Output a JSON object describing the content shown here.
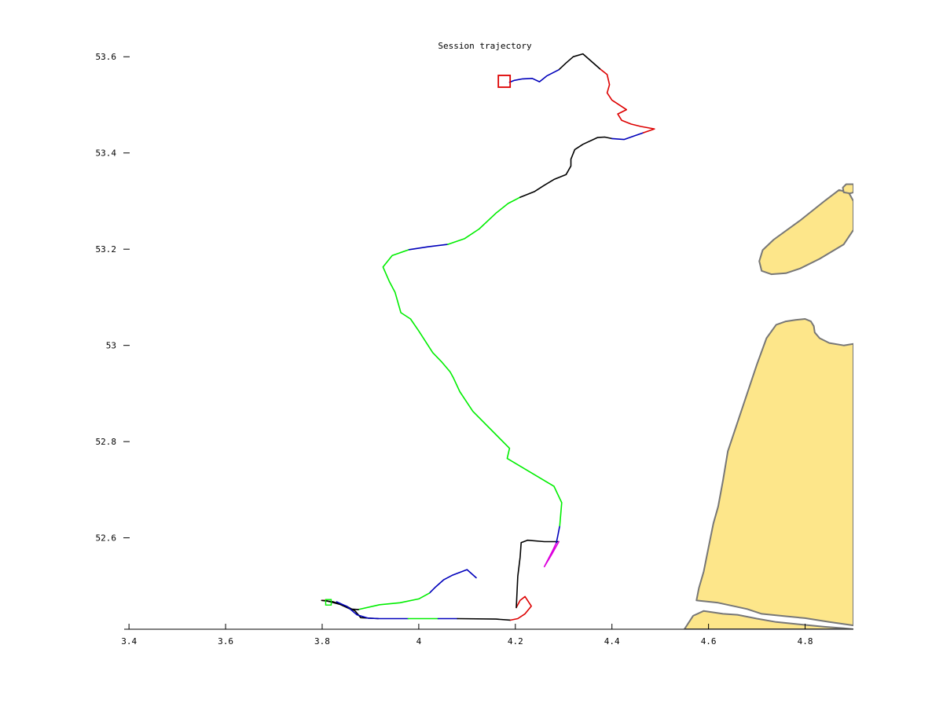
{
  "chart_data": {
    "type": "line",
    "title": "Session trajectory",
    "xlabel": "",
    "ylabel": "",
    "xlim": [
      3.39,
      4.9
    ],
    "ylim": [
      52.41,
      53.62
    ],
    "xticks": [
      3.4,
      3.6,
      3.8,
      4,
      4.2,
      4.4,
      4.6,
      4.8
    ],
    "xtick_labels": [
      "3.4",
      "3.6",
      "3.8",
      "4",
      "4.2",
      "4.4",
      "4.6",
      "4.8"
    ],
    "yticks": [
      52.6,
      52.8,
      53,
      53.2,
      53.4,
      53.6
    ],
    "ytick_labels": [
      "52.6",
      "52.8",
      "53",
      "53.2",
      "53.4",
      "53.6"
    ],
    "grid": false,
    "colors": {
      "black": "#000000",
      "green": "#00ee00",
      "blue": "#0000bb",
      "red": "#dd0000",
      "magenta": "#dd00dd",
      "land_fill": "#fde68a",
      "land_stroke": "#777777"
    },
    "markers": [
      {
        "shape": "square",
        "color": "red",
        "x": 4.177,
        "y": 53.549
      },
      {
        "shape": "square",
        "color": "green",
        "x": 3.813,
        "y": 52.466
      }
    ],
    "segments": [
      {
        "color": "blue",
        "points": [
          [
            4.119,
            52.517
          ],
          [
            4.1,
            52.534
          ],
          [
            4.069,
            52.522
          ],
          [
            4.052,
            52.513
          ],
          [
            4.035,
            52.498
          ],
          [
            4.022,
            52.485
          ]
        ]
      },
      {
        "color": "green",
        "points": [
          [
            4.022,
            52.485
          ],
          [
            4.0,
            52.473
          ],
          [
            3.961,
            52.465
          ],
          [
            3.919,
            52.461
          ],
          [
            3.875,
            52.451
          ]
        ]
      },
      {
        "color": "black",
        "points": [
          [
            3.875,
            52.451
          ],
          [
            3.858,
            52.452
          ],
          [
            3.836,
            52.462
          ],
          [
            3.806,
            52.47
          ]
        ]
      },
      {
        "color": "red",
        "points": [
          [
            3.806,
            52.47
          ],
          [
            3.799,
            52.47
          ]
        ]
      },
      {
        "color": "black",
        "points": [
          [
            3.799,
            52.47
          ],
          [
            3.823,
            52.467
          ],
          [
            3.85,
            52.458
          ],
          [
            3.868,
            52.448
          ],
          [
            3.88,
            52.434
          ],
          [
            3.916,
            52.432
          ]
        ]
      },
      {
        "color": "blue",
        "points": [
          [
            3.83,
            52.467
          ],
          [
            3.852,
            52.457
          ],
          [
            3.872,
            52.44
          ],
          [
            3.895,
            52.433
          ],
          [
            3.919,
            52.432
          ],
          [
            3.978,
            52.432
          ]
        ]
      },
      {
        "color": "green",
        "points": [
          [
            3.978,
            52.432
          ],
          [
            4.04,
            52.432
          ]
        ]
      },
      {
        "color": "blue",
        "points": [
          [
            4.04,
            52.432
          ],
          [
            4.08,
            52.432
          ]
        ]
      },
      {
        "color": "black",
        "points": [
          [
            4.08,
            52.432
          ],
          [
            4.16,
            52.431
          ],
          [
            4.19,
            52.429
          ]
        ]
      },
      {
        "color": "red",
        "points": [
          [
            4.19,
            52.429
          ],
          [
            4.205,
            52.432
          ],
          [
            4.22,
            52.442
          ],
          [
            4.233,
            52.458
          ],
          [
            4.22,
            52.478
          ],
          [
            4.21,
            52.47
          ],
          [
            4.202,
            52.455
          ]
        ]
      },
      {
        "color": "black",
        "points": [
          [
            4.202,
            52.455
          ],
          [
            4.205,
            52.52
          ],
          [
            4.21,
            52.56
          ],
          [
            4.212,
            52.59
          ],
          [
            4.225,
            52.595
          ],
          [
            4.26,
            52.592
          ],
          [
            4.29,
            52.592
          ]
        ]
      },
      {
        "color": "magenta",
        "points": [
          [
            4.29,
            52.592
          ],
          [
            4.275,
            52.565
          ],
          [
            4.26,
            52.54
          ],
          [
            4.278,
            52.575
          ],
          [
            4.285,
            52.59
          ]
        ]
      },
      {
        "color": "blue",
        "points": [
          [
            4.285,
            52.59
          ],
          [
            4.288,
            52.605
          ],
          [
            4.292,
            52.625
          ]
        ]
      },
      {
        "color": "green",
        "points": [
          [
            4.292,
            52.625
          ],
          [
            4.296,
            52.673
          ],
          [
            4.28,
            52.707
          ],
          [
            4.183,
            52.765
          ],
          [
            4.188,
            52.786
          ],
          [
            4.112,
            52.863
          ],
          [
            4.085,
            52.904
          ],
          [
            4.072,
            52.932
          ],
          [
            4.065,
            52.945
          ],
          [
            4.048,
            52.965
          ],
          [
            4.029,
            52.985
          ],
          [
            4.0,
            53.03
          ],
          [
            3.983,
            53.055
          ],
          [
            3.963,
            53.068
          ],
          [
            3.951,
            53.11
          ],
          [
            3.939,
            53.133
          ],
          [
            3.926,
            53.163
          ],
          [
            3.945,
            53.187
          ],
          [
            3.98,
            53.199
          ]
        ]
      },
      {
        "color": "blue",
        "points": [
          [
            3.98,
            53.199
          ],
          [
            4.02,
            53.205
          ],
          [
            4.06,
            53.21
          ]
        ]
      },
      {
        "color": "green",
        "points": [
          [
            4.06,
            53.21
          ],
          [
            4.095,
            53.222
          ],
          [
            4.125,
            53.242
          ],
          [
            4.16,
            53.275
          ],
          [
            4.185,
            53.295
          ],
          [
            4.21,
            53.308
          ]
        ]
      },
      {
        "color": "black",
        "points": [
          [
            4.21,
            53.308
          ],
          [
            4.24,
            53.32
          ],
          [
            4.26,
            53.333
          ],
          [
            4.28,
            53.345
          ],
          [
            4.305,
            53.355
          ],
          [
            4.315,
            53.373
          ],
          [
            4.315,
            53.387
          ],
          [
            4.323,
            53.407
          ],
          [
            4.34,
            53.418
          ],
          [
            4.37,
            53.432
          ],
          [
            4.385,
            53.433
          ],
          [
            4.4,
            53.43
          ]
        ]
      },
      {
        "color": "blue",
        "points": [
          [
            4.4,
            53.43
          ],
          [
            4.425,
            53.428
          ],
          [
            4.445,
            53.435
          ],
          [
            4.465,
            53.442
          ]
        ]
      },
      {
        "color": "red",
        "points": [
          [
            4.465,
            53.442
          ],
          [
            4.488,
            53.45
          ],
          [
            4.46,
            53.455
          ],
          [
            4.44,
            53.46
          ],
          [
            4.42,
            53.468
          ],
          [
            4.412,
            53.481
          ],
          [
            4.43,
            53.49
          ],
          [
            4.4,
            53.51
          ],
          [
            4.39,
            53.525
          ],
          [
            4.395,
            53.542
          ],
          [
            4.39,
            53.563
          ],
          [
            4.375,
            53.575
          ]
        ]
      },
      {
        "color": "black",
        "points": [
          [
            4.375,
            53.575
          ],
          [
            4.34,
            53.606
          ],
          [
            4.32,
            53.6
          ],
          [
            4.305,
            53.587
          ],
          [
            4.29,
            53.573
          ]
        ]
      },
      {
        "color": "blue",
        "points": [
          [
            4.29,
            53.573
          ],
          [
            4.265,
            53.56
          ],
          [
            4.25,
            53.548
          ],
          [
            4.235,
            53.555
          ],
          [
            4.215,
            53.554
          ],
          [
            4.198,
            53.551
          ],
          [
            4.188,
            53.547
          ]
        ]
      }
    ],
    "land": [
      {
        "points": [
          [
            4.55,
            52.41
          ],
          [
            4.568,
            52.438
          ],
          [
            4.59,
            52.448
          ],
          [
            4.63,
            52.442
          ],
          [
            4.66,
            52.44
          ],
          [
            4.7,
            52.432
          ],
          [
            4.74,
            52.425
          ],
          [
            4.79,
            52.42
          ],
          [
            4.84,
            52.415
          ],
          [
            4.88,
            52.412
          ],
          [
            4.9,
            52.41
          ]
        ]
      },
      {
        "points": [
          [
            4.575,
            52.47
          ],
          [
            4.62,
            52.465
          ],
          [
            4.68,
            52.452
          ],
          [
            4.71,
            52.442
          ],
          [
            4.76,
            52.437
          ],
          [
            4.8,
            52.433
          ],
          [
            4.85,
            52.425
          ],
          [
            4.9,
            52.418
          ],
          [
            4.9,
            53.003
          ],
          [
            4.88,
            53.0
          ],
          [
            4.85,
            53.005
          ],
          [
            4.83,
            53.015
          ],
          [
            4.82,
            53.027
          ],
          [
            4.818,
            53.04
          ],
          [
            4.812,
            53.05
          ],
          [
            4.8,
            53.055
          ],
          [
            4.78,
            53.053
          ],
          [
            4.76,
            53.05
          ],
          [
            4.74,
            53.043
          ],
          [
            4.72,
            53.015
          ],
          [
            4.7,
            52.96
          ],
          [
            4.68,
            52.9
          ],
          [
            4.66,
            52.84
          ],
          [
            4.64,
            52.78
          ],
          [
            4.63,
            52.72
          ],
          [
            4.62,
            52.665
          ],
          [
            4.61,
            52.63
          ],
          [
            4.6,
            52.58
          ],
          [
            4.59,
            52.53
          ],
          [
            4.58,
            52.495
          ]
        ]
      },
      {
        "points": [
          [
            4.9,
            53.24
          ],
          [
            4.88,
            53.21
          ],
          [
            4.83,
            53.18
          ],
          [
            4.79,
            53.16
          ],
          [
            4.76,
            53.15
          ],
          [
            4.73,
            53.148
          ],
          [
            4.71,
            53.155
          ],
          [
            4.705,
            53.175
          ],
          [
            4.712,
            53.198
          ],
          [
            4.735,
            53.22
          ],
          [
            4.79,
            53.26
          ],
          [
            4.84,
            53.3
          ],
          [
            4.87,
            53.323
          ],
          [
            4.89,
            53.318
          ],
          [
            4.9,
            53.3
          ]
        ]
      },
      {
        "points": [
          [
            4.9,
            53.335
          ],
          [
            4.885,
            53.335
          ],
          [
            4.878,
            53.328
          ],
          [
            4.88,
            53.318
          ],
          [
            4.893,
            53.316
          ],
          [
            4.9,
            53.318
          ]
        ]
      }
    ]
  }
}
